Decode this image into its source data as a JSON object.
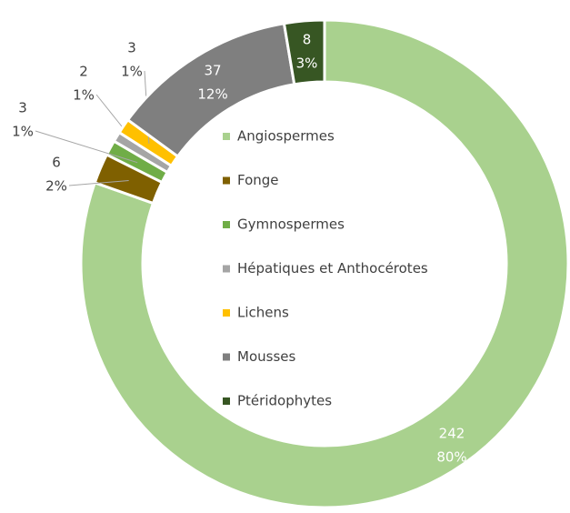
{
  "chart_data": {
    "type": "donut",
    "categories": [
      "Angiospermes",
      "Fonge",
      "Gymnospermes",
      "Hépatiques et Anthocérotes",
      "Lichens",
      "Mousses",
      "Ptéridophytes"
    ],
    "values": [
      242,
      6,
      3,
      2,
      3,
      37,
      8
    ],
    "percent_labels": [
      "80%",
      "2%",
      "1%",
      "1%",
      "1%",
      "12%",
      "3%"
    ],
    "colors": [
      "#a9d18e",
      "#7f6000",
      "#70ad47",
      "#a5a5a5",
      "#ffc000",
      "#7f7f7f",
      "#375623"
    ],
    "legend": "center"
  }
}
